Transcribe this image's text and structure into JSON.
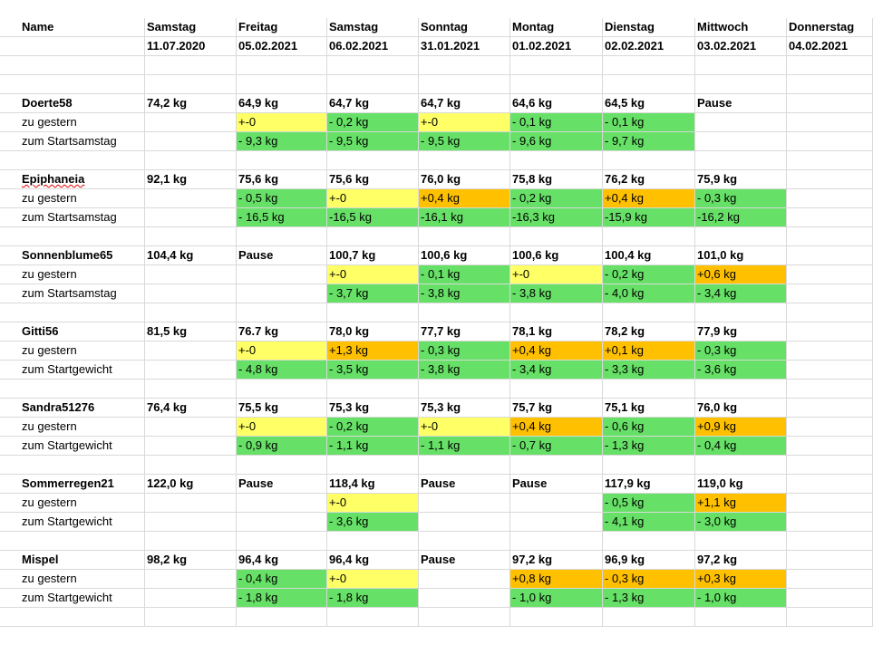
{
  "header": {
    "name_label": "Name",
    "days": [
      "Samstag",
      "Freitag",
      "Samstag",
      "Sonntag",
      "Montag",
      "Dienstag",
      "Mittwoch",
      "Donnerstag"
    ],
    "dates": [
      "11.07.2020",
      "05.02.2021",
      "06.02.2021",
      "31.01.2021",
      "01.02.2021",
      "02.02.2021",
      "03.02.2021",
      "04.02.2021"
    ]
  },
  "colors": {
    "yellow": "#ffff66",
    "green": "#66e066",
    "orange": "#ffc000",
    "grid": "#d9d9d9"
  },
  "people": [
    {
      "name": "Doerte58",
      "start": "74,2 kg",
      "weights": [
        "64,9 kg",
        "64,7 kg",
        "64,7 kg",
        "64,6 kg",
        "64,5 kg",
        "Pause",
        ""
      ],
      "yesterday_label": "zu gestern",
      "yesterday": [
        [
          "+-0",
          "y"
        ],
        [
          "- 0,2 kg",
          "g"
        ],
        [
          "+-0",
          "y"
        ],
        [
          "- 0,1 kg",
          "g"
        ],
        [
          "- 0,1 kg",
          "g"
        ],
        [
          "",
          ""
        ],
        [
          "",
          ""
        ]
      ],
      "start_label": "zum Startsamstag",
      "since_start": [
        [
          "- 9,3 kg",
          "g"
        ],
        [
          "- 9,5 kg",
          "g"
        ],
        [
          "- 9,5 kg",
          "g"
        ],
        [
          "- 9,6 kg",
          "g"
        ],
        [
          "- 9,7 kg",
          "g"
        ],
        [
          "",
          ""
        ],
        [
          "",
          ""
        ]
      ]
    },
    {
      "name": "Epiphaneia",
      "start": "92,1 kg",
      "weights": [
        "75,6 kg",
        "75,6 kg",
        "76,0 kg",
        "75,8 kg",
        "76,2 kg",
        "75,9 kg",
        ""
      ],
      "yesterday_label": "zu gestern",
      "yesterday": [
        [
          "- 0,5 kg",
          "g"
        ],
        [
          "+-0",
          "y"
        ],
        [
          "+0,4 kg",
          "o"
        ],
        [
          "- 0,2 kg",
          "g"
        ],
        [
          "+0,4 kg",
          "o"
        ],
        [
          "- 0,3 kg",
          "g"
        ],
        [
          "",
          ""
        ]
      ],
      "start_label": "zum Startsamstag",
      "since_start": [
        [
          "- 16,5 kg",
          "g"
        ],
        [
          "-16,5 kg",
          "g"
        ],
        [
          "-16,1 kg",
          "g"
        ],
        [
          "-16,3 kg",
          "g"
        ],
        [
          "-15,9 kg",
          "g"
        ],
        [
          "-16,2 kg",
          "g"
        ],
        [
          "",
          ""
        ]
      ]
    },
    {
      "name": "Sonnenblume65",
      "start": "104,4 kg",
      "weights": [
        "Pause",
        "100,7 kg",
        "100,6 kg",
        "100,6 kg",
        "100,4 kg",
        "101,0 kg",
        ""
      ],
      "yesterday_label": "zu gestern",
      "yesterday": [
        [
          "",
          ""
        ],
        [
          "+-0",
          "y"
        ],
        [
          "- 0,1 kg",
          "g"
        ],
        [
          "+-0",
          "y"
        ],
        [
          "- 0,2 kg",
          "g"
        ],
        [
          "+0,6 kg",
          "o"
        ],
        [
          "",
          ""
        ]
      ],
      "start_label": "zum Startsamstag",
      "since_start": [
        [
          "",
          ""
        ],
        [
          "- 3,7 kg",
          "g"
        ],
        [
          "- 3,8 kg",
          "g"
        ],
        [
          "- 3,8 kg",
          "g"
        ],
        [
          "- 4,0 kg",
          "g"
        ],
        [
          "- 3,4 kg",
          "g"
        ],
        [
          "",
          ""
        ]
      ]
    },
    {
      "name": "Gitti56",
      "start": "81,5 kg",
      "weights": [
        "76.7 kg",
        "78,0 kg",
        "77,7 kg",
        "78,1 kg",
        "78,2 kg",
        "77,9 kg",
        ""
      ],
      "yesterday_label": "zu gestern",
      "yesterday": [
        [
          "+-0",
          "y"
        ],
        [
          "+1,3 kg",
          "o"
        ],
        [
          "- 0,3 kg",
          "g"
        ],
        [
          "+0,4 kg",
          "o"
        ],
        [
          "+0,1 kg",
          "o"
        ],
        [
          "- 0,3 kg",
          "g"
        ],
        [
          "",
          ""
        ]
      ],
      "start_label": "zum Startgewicht",
      "since_start": [
        [
          "- 4,8 kg",
          "g"
        ],
        [
          "- 3,5 kg",
          "g"
        ],
        [
          "- 3,8 kg",
          "g"
        ],
        [
          "- 3,4 kg",
          "g"
        ],
        [
          "- 3,3 kg",
          "g"
        ],
        [
          "- 3,6 kg",
          "g"
        ],
        [
          "",
          ""
        ]
      ]
    },
    {
      "name": "Sandra51276",
      "start": "76,4 kg",
      "weights": [
        "75,5 kg",
        "75,3 kg",
        "75,3 kg",
        "75,7 kg",
        "75,1 kg",
        "76,0 kg",
        ""
      ],
      "yesterday_label": "zu gestern",
      "yesterday": [
        [
          "+-0",
          "y"
        ],
        [
          "- 0,2 kg",
          "g"
        ],
        [
          "+-0",
          "y"
        ],
        [
          "+0,4 kg",
          "o"
        ],
        [
          "- 0,6 kg",
          "g"
        ],
        [
          "+0,9 kg",
          "o"
        ],
        [
          "",
          ""
        ]
      ],
      "start_label": "zum Startgewicht",
      "since_start": [
        [
          "- 0,9 kg",
          "g"
        ],
        [
          "- 1,1 kg",
          "g"
        ],
        [
          "- 1,1 kg",
          "g"
        ],
        [
          "- 0,7 kg",
          "g"
        ],
        [
          "- 1,3 kg",
          "g"
        ],
        [
          "- 0,4 kg",
          "g"
        ],
        [
          "",
          ""
        ]
      ]
    },
    {
      "name": "Sommerregen21",
      "start": "122,0 kg",
      "weights": [
        "Pause",
        "118,4 kg",
        "Pause",
        "Pause",
        "117,9 kg",
        "119,0 kg",
        ""
      ],
      "yesterday_label": "zu gestern",
      "yesterday": [
        [
          "",
          ""
        ],
        [
          "+-0",
          "y"
        ],
        [
          "",
          ""
        ],
        [
          "",
          ""
        ],
        [
          "- 0,5 kg",
          "g"
        ],
        [
          "+1,1 kg",
          "o"
        ],
        [
          "",
          ""
        ]
      ],
      "start_label": "zum Startgewicht",
      "since_start": [
        [
          "",
          ""
        ],
        [
          "- 3,6 kg",
          "g"
        ],
        [
          "",
          ""
        ],
        [
          "",
          ""
        ],
        [
          "- 4,1 kg",
          "g"
        ],
        [
          "- 3,0 kg",
          "g"
        ],
        [
          "",
          ""
        ]
      ]
    },
    {
      "name": "Mispel",
      "start": "98,2 kg",
      "weights": [
        "96,4 kg",
        "96,4 kg",
        "Pause",
        "97,2 kg",
        "96,9 kg",
        "97,2 kg",
        ""
      ],
      "yesterday_label": "zu gestern",
      "yesterday": [
        [
          "- 0,4 kg",
          "g"
        ],
        [
          "+-0",
          "y"
        ],
        [
          "",
          ""
        ],
        [
          "+0,8 kg",
          "o"
        ],
        [
          "- 0,3 kg",
          "o"
        ],
        [
          "+0,3 kg",
          "o"
        ],
        [
          "",
          ""
        ]
      ],
      "start_label": "zum Startgewicht",
      "since_start": [
        [
          "- 1,8 kg",
          "g"
        ],
        [
          "- 1,8 kg",
          "g"
        ],
        [
          "",
          ""
        ],
        [
          "- 1,0 kg",
          "g"
        ],
        [
          "- 1,3 kg",
          "g"
        ],
        [
          "- 1,0 kg",
          "g"
        ],
        [
          "",
          ""
        ]
      ]
    }
  ]
}
